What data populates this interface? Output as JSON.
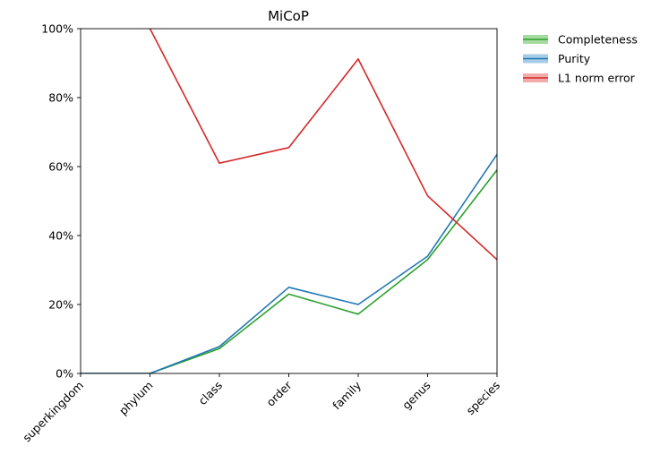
{
  "chart_data": {
    "type": "line",
    "title": "MiCoP",
    "xlabel": "",
    "ylabel": "",
    "categories": [
      "superkingdom",
      "phylum",
      "class",
      "order",
      "family",
      "genus",
      "species"
    ],
    "ylim": [
      0,
      100
    ],
    "yticks": [
      0,
      20,
      40,
      60,
      80,
      100
    ],
    "ytick_labels": [
      "0%",
      "20%",
      "40%",
      "60%",
      "80%",
      "100%"
    ],
    "grid": false,
    "legend_position": "outside-top-right",
    "series": [
      {
        "name": "Completeness",
        "color": "#2ca02c",
        "band_color": "#a6dba0",
        "values": [
          0,
          0,
          7.2,
          23.0,
          17.2,
          33.0,
          59.0
        ]
      },
      {
        "name": "Purity",
        "color": "#1f77b4",
        "band_color": "#a6cbe6",
        "values": [
          0,
          0,
          7.8,
          25.0,
          20.0,
          34.0,
          63.5
        ]
      },
      {
        "name": "L1 norm error",
        "color": "#d62728",
        "band_color": "#f2aaaa",
        "values": [
          null,
          100,
          61.0,
          65.5,
          91.2,
          51.5,
          33.0
        ]
      }
    ]
  }
}
